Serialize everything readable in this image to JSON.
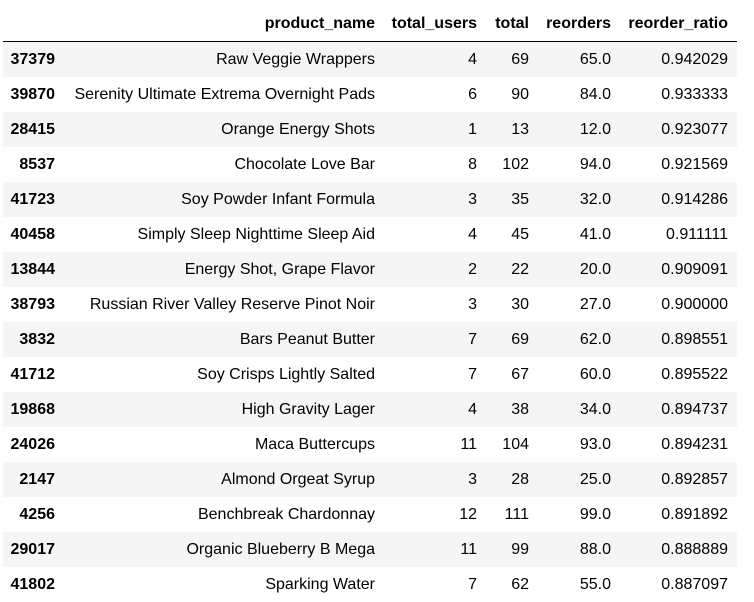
{
  "table": {
    "index_header": "",
    "columns": [
      "product_name",
      "total_users",
      "total",
      "reorders",
      "reorder_ratio"
    ],
    "rows": [
      {
        "index": "37379",
        "product_name": "Raw Veggie Wrappers",
        "total_users": "4",
        "total": "69",
        "reorders": "65.0",
        "reorder_ratio": "0.942029"
      },
      {
        "index": "39870",
        "product_name": "Serenity Ultimate Extrema Overnight Pads",
        "total_users": "6",
        "total": "90",
        "reorders": "84.0",
        "reorder_ratio": "0.933333"
      },
      {
        "index": "28415",
        "product_name": "Orange Energy Shots",
        "total_users": "1",
        "total": "13",
        "reorders": "12.0",
        "reorder_ratio": "0.923077"
      },
      {
        "index": "8537",
        "product_name": "Chocolate Love Bar",
        "total_users": "8",
        "total": "102",
        "reorders": "94.0",
        "reorder_ratio": "0.921569"
      },
      {
        "index": "41723",
        "product_name": "Soy Powder Infant Formula",
        "total_users": "3",
        "total": "35",
        "reorders": "32.0",
        "reorder_ratio": "0.914286"
      },
      {
        "index": "40458",
        "product_name": "Simply Sleep Nighttime Sleep Aid",
        "total_users": "4",
        "total": "45",
        "reorders": "41.0",
        "reorder_ratio": "0.911111"
      },
      {
        "index": "13844",
        "product_name": "Energy Shot, Grape Flavor",
        "total_users": "2",
        "total": "22",
        "reorders": "20.0",
        "reorder_ratio": "0.909091"
      },
      {
        "index": "38793",
        "product_name": "Russian River Valley Reserve Pinot Noir",
        "total_users": "3",
        "total": "30",
        "reorders": "27.0",
        "reorder_ratio": "0.900000"
      },
      {
        "index": "3832",
        "product_name": "Bars Peanut Butter",
        "total_users": "7",
        "total": "69",
        "reorders": "62.0",
        "reorder_ratio": "0.898551"
      },
      {
        "index": "41712",
        "product_name": "Soy Crisps Lightly Salted",
        "total_users": "7",
        "total": "67",
        "reorders": "60.0",
        "reorder_ratio": "0.895522"
      },
      {
        "index": "19868",
        "product_name": "High Gravity Lager",
        "total_users": "4",
        "total": "38",
        "reorders": "34.0",
        "reorder_ratio": "0.894737"
      },
      {
        "index": "24026",
        "product_name": "Maca Buttercups",
        "total_users": "11",
        "total": "104",
        "reorders": "93.0",
        "reorder_ratio": "0.894231"
      },
      {
        "index": "2147",
        "product_name": "Almond Orgeat Syrup",
        "total_users": "3",
        "total": "28",
        "reorders": "25.0",
        "reorder_ratio": "0.892857"
      },
      {
        "index": "4256",
        "product_name": "Benchbreak Chardonnay",
        "total_users": "12",
        "total": "111",
        "reorders": "99.0",
        "reorder_ratio": "0.891892"
      },
      {
        "index": "29017",
        "product_name": "Organic Blueberry B Mega",
        "total_users": "11",
        "total": "99",
        "reorders": "88.0",
        "reorder_ratio": "0.888889"
      },
      {
        "index": "41802",
        "product_name": "Sparking Water",
        "total_users": "7",
        "total": "62",
        "reorders": "55.0",
        "reorder_ratio": "0.887097"
      }
    ]
  },
  "colors": {
    "stripe": "#f5f5f5",
    "background": "#ffffff",
    "header_rule": "#000000"
  }
}
